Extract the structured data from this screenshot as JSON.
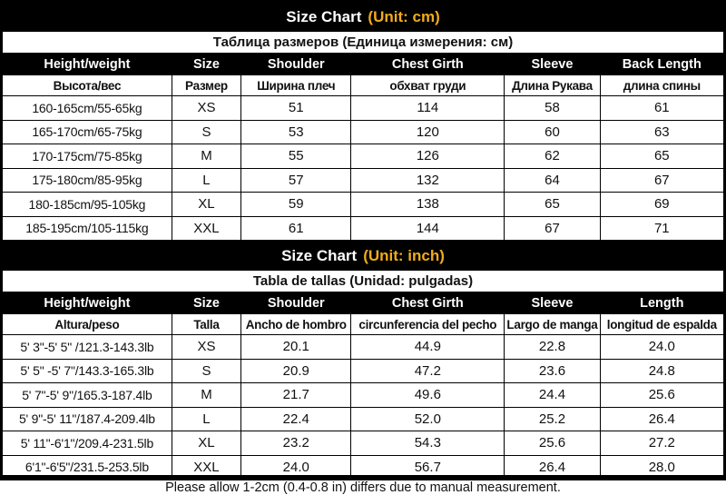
{
  "colors": {
    "title_bar_bg": "#000000",
    "unit_text": "#F1AC1B",
    "table_text": "#111111",
    "background": "#ffffff"
  },
  "sections": [
    {
      "title_main": "Size Chart",
      "title_unit": "(Unit: cm)",
      "subtitle": "Таблица размеров (Единица измерения: см)",
      "columns_en": [
        "Height/weight",
        "Size",
        "Shoulder",
        "Chest Girth",
        "Sleeve",
        "Back Length"
      ],
      "columns_local": [
        "Высота/вес",
        "Размер",
        "Ширина плеч",
        "обхват груди",
        "Длина Рукава",
        "длина спины"
      ],
      "rows": [
        [
          "160-165cm/55-65kg",
          "XS",
          "51",
          "114",
          "58",
          "61"
        ],
        [
          "165-170cm/65-75kg",
          "S",
          "53",
          "120",
          "60",
          "63"
        ],
        [
          "170-175cm/75-85kg",
          "M",
          "55",
          "126",
          "62",
          "65"
        ],
        [
          "175-180cm/85-95kg",
          "L",
          "57",
          "132",
          "64",
          "67"
        ],
        [
          "180-185cm/95-105kg",
          "XL",
          "59",
          "138",
          "65",
          "69"
        ],
        [
          "185-195cm/105-115kg",
          "XXL",
          "61",
          "144",
          "67",
          "71"
        ]
      ]
    },
    {
      "title_main": "Size Chart",
      "title_unit": "(Unit: inch)",
      "subtitle": "Tabla de tallas (Unidad: pulgadas)",
      "columns_en": [
        "Height/weight",
        "Size",
        "Shoulder",
        "Chest Girth",
        "Sleeve",
        "Length"
      ],
      "columns_local": [
        "Altura/peso",
        "Talla",
        "Ancho de hombro",
        "circunferencia del pecho",
        "Largo de manga",
        "longitud de espalda"
      ],
      "rows": [
        [
          "5' 3\"-5' 5\" /121.3-143.3lb",
          "XS",
          "20.1",
          "44.9",
          "22.8",
          "24.0"
        ],
        [
          "5' 5\" -5' 7\"/143.3-165.3lb",
          "S",
          "20.9",
          "47.2",
          "23.6",
          "24.8"
        ],
        [
          "5' 7\"-5' 9\"/165.3-187.4lb",
          "M",
          "21.7",
          "49.6",
          "24.4",
          "25.6"
        ],
        [
          "5' 9\"-5' 11\"/187.4-209.4lb",
          "L",
          "22.4",
          "52.0",
          "25.2",
          "26.4"
        ],
        [
          "5' 11\"-6'1\"/209.4-231.5lb",
          "XL",
          "23.2",
          "54.3",
          "25.6",
          "27.2"
        ],
        [
          "6'1\"-6'5\"/231.5-253.5lb",
          "XXL",
          "24.0",
          "56.7",
          "26.4",
          "28.0"
        ]
      ]
    }
  ],
  "footer": "Please allow 1-2cm (0.4-0.8 in) differs due to manual measurement."
}
